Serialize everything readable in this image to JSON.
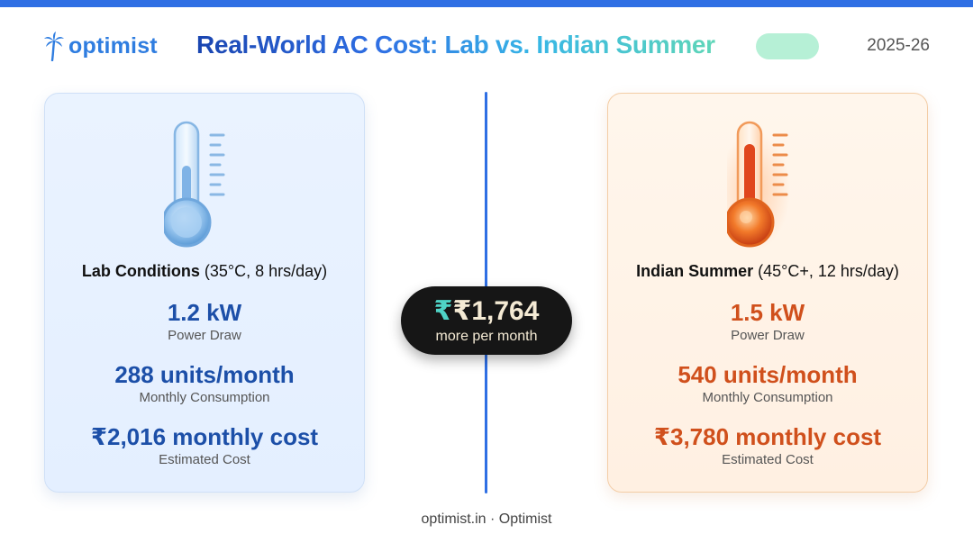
{
  "brand": {
    "name": "optimist"
  },
  "header": {
    "title": "Real-World AC Cost: Lab vs. Indian Summer",
    "year": "2025-26"
  },
  "lab": {
    "condition_bold": "Lab Conditions",
    "condition_rest": " (35°C, 8 hrs/day)",
    "power_value": "1.2 kW",
    "power_label": "Power Draw",
    "consumption_value": "288 units/month",
    "consumption_label": "Monthly Consumption",
    "cost_value": "₹2,016 monthly cost",
    "cost_label": "Estimated Cost"
  },
  "summer": {
    "condition_bold": "Indian Summer",
    "condition_rest": " (45°C+, 12 hrs/day)",
    "power_value": "1.5 kW",
    "power_label": "Power Draw",
    "consumption_value": "540 units/month",
    "consumption_label": "Monthly Consumption",
    "cost_value": "₹3,780 monthly cost",
    "cost_label": "Estimated Cost"
  },
  "difference": {
    "symbol": "₹",
    "value": "₹1,764",
    "label": "more per month"
  },
  "footer": {
    "text": "optimist.in · Optimist"
  },
  "colors": {
    "accent": "#2f6fe4",
    "lab": "#1c4fa8",
    "summer": "#d0501c",
    "teal": "#4fd3c6"
  },
  "icons": {
    "logo": "palm-tree-icon",
    "lab": "thermometer-cool-icon",
    "summer": "thermometer-hot-icon"
  }
}
